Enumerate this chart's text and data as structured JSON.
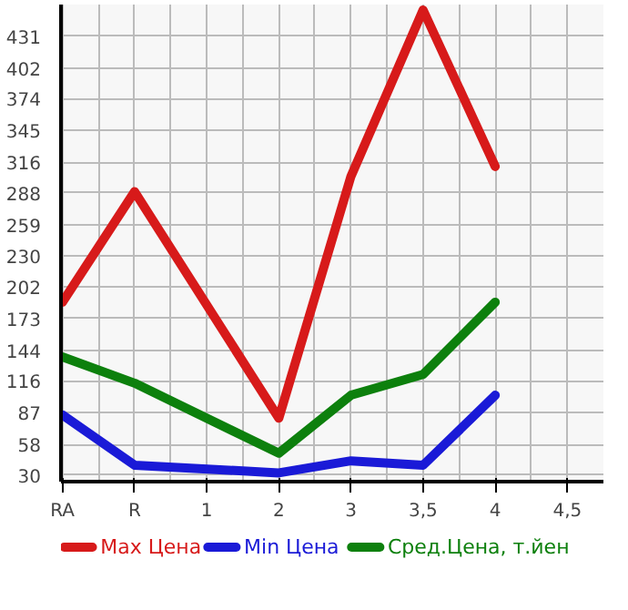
{
  "chart_data": {
    "type": "line",
    "categories": [
      "RA",
      "R",
      "1",
      "2",
      "3",
      "3,5",
      "4",
      "4,5"
    ],
    "series": [
      {
        "name": "Max Цена",
        "color": "#d71a1a",
        "values": [
          188,
          289,
          null,
          82,
          303,
          455,
          312,
          null
        ]
      },
      {
        "name": "Min Цена",
        "color": "#1a1ad7",
        "values": [
          85,
          39,
          null,
          32,
          43,
          39,
          103,
          null
        ]
      },
      {
        "name": "Сред.Цена, т.йен",
        "color": "#0d800d",
        "values": [
          138,
          114,
          null,
          50,
          103,
          122,
          188,
          null
        ]
      }
    ],
    "ylim": [
      24,
      460
    ],
    "yticks": [
      30,
      58,
      87,
      116,
      144,
      173,
      202,
      230,
      259,
      288,
      316,
      345,
      374,
      402,
      431
    ],
    "grid": true,
    "legend": "bottom",
    "marker": "none",
    "line_style": "solid"
  }
}
